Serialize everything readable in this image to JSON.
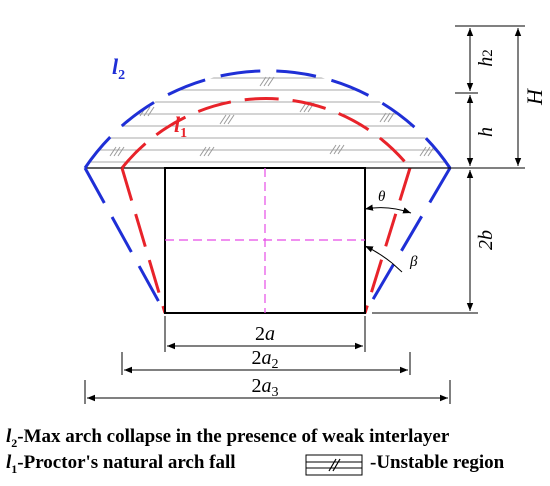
{
  "labels": {
    "l2_main": "l",
    "l2_sub": "2",
    "l1_main": "l",
    "l1_sub": "1",
    "theta": "θ",
    "beta": "β",
    "h2_main": "h",
    "h2_sub": "2",
    "h": "h",
    "H": "H",
    "two_b": "2b",
    "two_a_coef": "2",
    "two_a_var": "a",
    "two_a2_coef": "2",
    "two_a2_var": "a",
    "two_a2_sub": "2",
    "two_a3_coef": "2",
    "two_a3_var": "a",
    "two_a3_sub": "3"
  },
  "captions": {
    "line1_main": "l",
    "line1_sub": "2",
    "line1_text": "-Max arch collapse in the presence of weak interlayer",
    "line2_main": "l",
    "line2_sub": "1",
    "line2_text": "-Proctor's natural arch fall",
    "legend_text": "-Unstable region"
  },
  "colors": {
    "l2_arch": "#1f2fd6",
    "l1_arch": "#e8232a",
    "centerline": "#e64ce6",
    "hatch": "#a8a8a8",
    "outline": "#000000"
  }
}
